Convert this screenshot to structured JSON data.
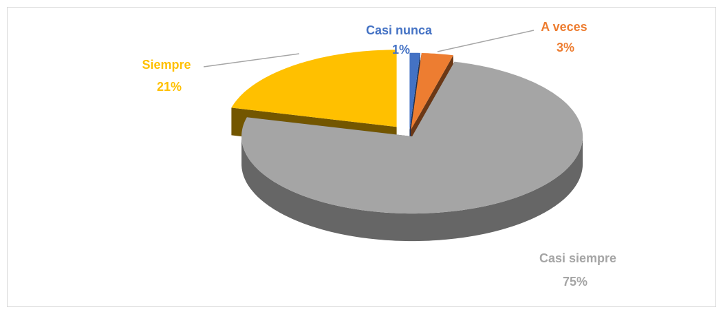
{
  "chart_data": {
    "type": "pie",
    "categories": [
      "Casi nunca",
      "A veces",
      "Casi siempre",
      "Siempre"
    ],
    "values": [
      1,
      3,
      75,
      21
    ],
    "value_labels": [
      "1%",
      "3%",
      "75%",
      "21%"
    ],
    "colors": [
      "#4472c4",
      "#ed7d31",
      "#a5a5a5",
      "#ffc000"
    ]
  }
}
